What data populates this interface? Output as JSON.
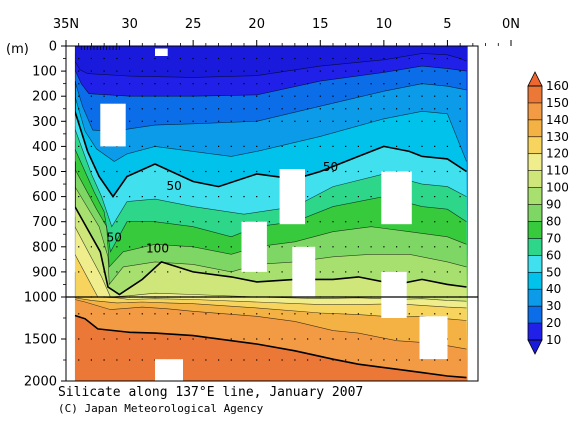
{
  "chart_data": {
    "type": "heatmap",
    "title": "Silicate along 137°E line, January 2007",
    "credit": "(C) Japan Meteorological Agency",
    "y_unit_label": "(m)",
    "x_axis": {
      "position": "top",
      "range": [
        35,
        0
      ],
      "ticks": [
        35,
        30,
        25,
        20,
        15,
        10,
        5,
        0
      ],
      "tick_labels": [
        "35N",
        "30",
        "25",
        "20",
        "15",
        "10",
        "5",
        "0N"
      ]
    },
    "y_axis": {
      "inverted": true,
      "upper_range": [
        0,
        1000
      ],
      "lower_range": [
        1000,
        2000
      ],
      "upper_ticks": [
        0,
        100,
        200,
        300,
        400,
        500,
        600,
        700,
        800,
        900,
        1000
      ],
      "lower_ticks": [
        1500,
        2000
      ],
      "tick_labels": [
        "0",
        "100",
        "200",
        "300",
        "400",
        "500",
        "600",
        "700",
        "800",
        "900",
        "1000",
        "1500",
        "2000"
      ]
    },
    "contour_labels": [
      {
        "text": "50",
        "lat": 26.5,
        "depth": 555
      },
      {
        "text": "50",
        "lat": 31.2,
        "depth": 760
      },
      {
        "text": "50",
        "lat": 14.2,
        "depth": 480
      },
      {
        "text": "100",
        "lat": 27.8,
        "depth": 805
      }
    ],
    "colorbar": {
      "levels": [
        10,
        20,
        30,
        40,
        50,
        60,
        70,
        80,
        90,
        100,
        110,
        120,
        130,
        140,
        150,
        160
      ],
      "tick_labels": [
        "10",
        "20",
        "30",
        "40",
        "50",
        "60",
        "70",
        "80",
        "90",
        "100",
        "110",
        "120",
        "130",
        "140",
        "150",
        "160"
      ],
      "colors": [
        "#2020e8",
        "#0b6de8",
        "#0b9be8",
        "#00c2ea",
        "#40e0ee",
        "#2ed68a",
        "#36ca3c",
        "#7ed664",
        "#a8e070",
        "#cfe67a",
        "#f0ee8c",
        "#f6d45e",
        "#f4b244",
        "#f29a44",
        "#ec7838"
      ],
      "under_color": "#1a1adc",
      "over_color": "#ee6630"
    },
    "isopleths": [
      {
        "value": 10,
        "points": [
          [
            34.3,
            0
          ],
          [
            34.3,
            60
          ],
          [
            33.9,
            95
          ],
          [
            33.3,
            110
          ],
          [
            30,
            120
          ],
          [
            25,
            125
          ],
          [
            20,
            118
          ],
          [
            15,
            80
          ],
          [
            10,
            55
          ],
          [
            7,
            30
          ],
          [
            5,
            35
          ],
          [
            4,
            50
          ],
          [
            3.5,
            60
          ]
        ]
      },
      {
        "value": 20,
        "points": [
          [
            34.3,
            30
          ],
          [
            34.3,
            95
          ],
          [
            33.8,
            150
          ],
          [
            33.2,
            190
          ],
          [
            30,
            200
          ],
          [
            25,
            200
          ],
          [
            20,
            195
          ],
          [
            15,
            140
          ],
          [
            10,
            105
          ],
          [
            7,
            80
          ],
          [
            5,
            90
          ],
          [
            3.5,
            100
          ]
        ]
      },
      {
        "value": 30,
        "points": [
          [
            34.3,
            60
          ],
          [
            34.3,
            140
          ],
          [
            33.7,
            240
          ],
          [
            32.9,
            335
          ],
          [
            31,
            340
          ],
          [
            30,
            330
          ],
          [
            28,
            315
          ],
          [
            25,
            310
          ],
          [
            20,
            300
          ],
          [
            15,
            240
          ],
          [
            10,
            180
          ],
          [
            7,
            150
          ],
          [
            5,
            160
          ],
          [
            3.5,
            175
          ]
        ]
      },
      {
        "value": 40,
        "points": [
          [
            34.3,
            100
          ],
          [
            34.3,
            200
          ],
          [
            33.5,
            340
          ],
          [
            32.6,
            410
          ],
          [
            31.2,
            460
          ],
          [
            30.2,
            430
          ],
          [
            28,
            400
          ],
          [
            25,
            420
          ],
          [
            22,
            440
          ],
          [
            20,
            420
          ],
          [
            15,
            360
          ],
          [
            10,
            290
          ],
          [
            7,
            260
          ],
          [
            5,
            270
          ],
          [
            3.5,
            460
          ]
        ]
      },
      {
        "value": 50,
        "points": [
          [
            34.3,
            140
          ],
          [
            34.3,
            260
          ],
          [
            33.3,
            420
          ],
          [
            32.4,
            520
          ],
          [
            31.3,
            600
          ],
          [
            30.2,
            520
          ],
          [
            28,
            470
          ],
          [
            25,
            540
          ],
          [
            23,
            560
          ],
          [
            20,
            510
          ],
          [
            17,
            530
          ],
          [
            15,
            500
          ],
          [
            12,
            440
          ],
          [
            10,
            400
          ],
          [
            8,
            420
          ],
          [
            7,
            440
          ],
          [
            5,
            450
          ],
          [
            3.5,
            500
          ]
        ]
      },
      {
        "value": 60,
        "points": [
          [
            34.3,
            200
          ],
          [
            34.3,
            330
          ],
          [
            33,
            510
          ],
          [
            32.2,
            600
          ],
          [
            31.4,
            720
          ],
          [
            30.2,
            620
          ],
          [
            28,
            610
          ],
          [
            25,
            640
          ],
          [
            21,
            670
          ],
          [
            17,
            640
          ],
          [
            14,
            560
          ],
          [
            10,
            510
          ],
          [
            7,
            550
          ],
          [
            5,
            560
          ],
          [
            3.5,
            600
          ]
        ]
      },
      {
        "value": 70,
        "points": [
          [
            34.3,
            260
          ],
          [
            34.3,
            410
          ],
          [
            32.8,
            580
          ],
          [
            32,
            660
          ],
          [
            31.5,
            820
          ],
          [
            30.2,
            700
          ],
          [
            28,
            700
          ],
          [
            25,
            720
          ],
          [
            22,
            760
          ],
          [
            20,
            720
          ],
          [
            17,
            700
          ],
          [
            14,
            640
          ],
          [
            10,
            600
          ],
          [
            7,
            640
          ],
          [
            5,
            650
          ],
          [
            3.5,
            700
          ]
        ]
      },
      {
        "value": 80,
        "points": [
          [
            34.3,
            320
          ],
          [
            34.3,
            490
          ],
          [
            32.6,
            650
          ],
          [
            31.8,
            720
          ],
          [
            31.6,
            880
          ],
          [
            30.5,
            820
          ],
          [
            28,
            790
          ],
          [
            25,
            800
          ],
          [
            22,
            830
          ],
          [
            20,
            800
          ],
          [
            17,
            780
          ],
          [
            14,
            740
          ],
          [
            11,
            720
          ],
          [
            8,
            740
          ],
          [
            5,
            760
          ],
          [
            3.5,
            790
          ]
        ]
      },
      {
        "value": 90,
        "points": [
          [
            34.3,
            380
          ],
          [
            34.3,
            560
          ],
          [
            32.4,
            720
          ],
          [
            31.7,
            840
          ],
          [
            31.6,
            950
          ],
          [
            30.5,
            880
          ],
          [
            28,
            860
          ],
          [
            25,
            870
          ],
          [
            22,
            900
          ],
          [
            20,
            870
          ],
          [
            17,
            860
          ],
          [
            14,
            840
          ],
          [
            11,
            830
          ],
          [
            8,
            830
          ],
          [
            5,
            860
          ],
          [
            3.5,
            880
          ]
        ]
      },
      {
        "value": 100,
        "points": [
          [
            34.3,
            460
          ],
          [
            34.3,
            640
          ],
          [
            32.3,
            820
          ],
          [
            31.7,
            960
          ],
          [
            30.8,
            990
          ],
          [
            29,
            930
          ],
          [
            27.5,
            860
          ],
          [
            25,
            900
          ],
          [
            22,
            920
          ],
          [
            20,
            940
          ],
          [
            17,
            930
          ],
          [
            14,
            930
          ],
          [
            12,
            920
          ],
          [
            9,
            950
          ],
          [
            7,
            930
          ],
          [
            5,
            950
          ],
          [
            3.5,
            960
          ]
        ]
      },
      {
        "value": 110,
        "points": [
          [
            34.3,
            560
          ],
          [
            34.3,
            720
          ],
          [
            32.2,
            920
          ],
          [
            31.5,
            1000
          ],
          [
            30,
            995
          ],
          [
            28,
            985
          ],
          [
            25,
            990
          ],
          [
            20,
            1000
          ],
          [
            15,
            1020
          ],
          [
            12,
            1010
          ],
          [
            9,
            1030
          ],
          [
            7,
            1020
          ],
          [
            5,
            1040
          ],
          [
            3.5,
            1050
          ]
        ]
      },
      {
        "value": 120,
        "points": [
          [
            34.3,
            680
          ],
          [
            34.3,
            830
          ],
          [
            32.5,
            1000
          ],
          [
            31,
            1010
          ],
          [
            30,
            1030
          ],
          [
            28,
            1020
          ],
          [
            25,
            1030
          ],
          [
            20,
            1060
          ],
          [
            15,
            1090
          ],
          [
            12,
            1090
          ],
          [
            9,
            1080
          ],
          [
            7,
            1100
          ],
          [
            5,
            1120
          ],
          [
            3.5,
            1130
          ]
        ]
      },
      {
        "value": 130,
        "points": [
          [
            34.3,
            900
          ],
          [
            34.3,
            1010
          ],
          [
            33,
            1040
          ],
          [
            31,
            1070
          ],
          [
            29,
            1060
          ],
          [
            27,
            1070
          ],
          [
            25,
            1080
          ],
          [
            20,
            1130
          ],
          [
            15,
            1190
          ],
          [
            12,
            1210
          ],
          [
            9,
            1240
          ],
          [
            7,
            1230
          ],
          [
            5,
            1260
          ],
          [
            3.5,
            1280
          ]
        ]
      },
      {
        "value": 140,
        "points": [
          [
            34.3,
            1030
          ],
          [
            33.5,
            1060
          ],
          [
            31.5,
            1150
          ],
          [
            29,
            1120
          ],
          [
            27,
            1140
          ],
          [
            25,
            1170
          ],
          [
            20,
            1230
          ],
          [
            17,
            1290
          ],
          [
            14,
            1400
          ],
          [
            12,
            1430
          ],
          [
            9,
            1520
          ],
          [
            7,
            1540
          ],
          [
            5,
            1580
          ],
          [
            3.5,
            1620
          ]
        ]
      },
      {
        "value": 150,
        "points": [
          [
            34.3,
            1220
          ],
          [
            33.5,
            1260
          ],
          [
            32.5,
            1380
          ],
          [
            30,
            1420
          ],
          [
            28,
            1430
          ],
          [
            25,
            1460
          ],
          [
            20,
            1560
          ],
          [
            17,
            1640
          ],
          [
            14,
            1740
          ],
          [
            12,
            1800
          ],
          [
            9,
            1860
          ],
          [
            7,
            1900
          ],
          [
            5,
            1940
          ],
          [
            3.5,
            1960
          ]
        ]
      }
    ]
  }
}
